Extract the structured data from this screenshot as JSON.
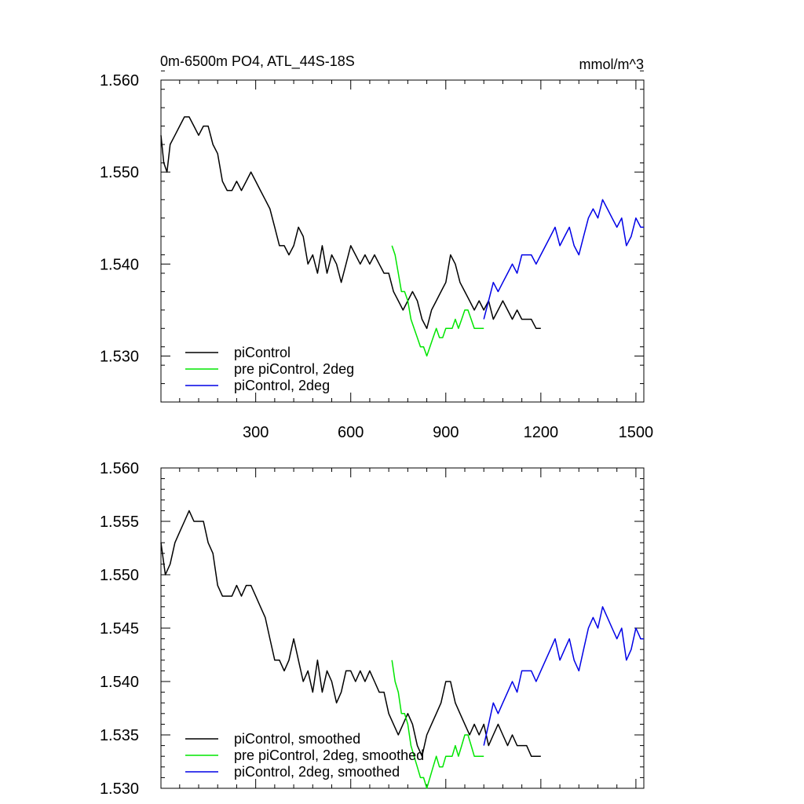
{
  "figure": {
    "title_left": "0m-6500m PO4, ATL_44S-18S",
    "title_right": "mmol/m^3"
  },
  "colors": {
    "piControl": "#000000",
    "pre_piControl_2deg": "#00e600",
    "piControl_2deg": "#0000e6"
  },
  "chart_data": [
    {
      "type": "line",
      "xlim": [
        1,
        1525
      ],
      "ylim": [
        1.525,
        1.56
      ],
      "xticks": [
        300,
        600,
        900,
        1200,
        1500
      ],
      "xtick_labels": [
        "300",
        "600",
        "900",
        "1200",
        "1500"
      ],
      "yticks": [
        1.53,
        1.54,
        1.55,
        1.56
      ],
      "ytick_labels": [
        "1.530",
        "1.540",
        "1.550",
        "1.560"
      ],
      "legend_position": "bottom-left",
      "series": [
        {
          "name": "piControl",
          "color": "#000000",
          "x": [
            1,
            10,
            20,
            30,
            45,
            60,
            75,
            90,
            105,
            120,
            135,
            150,
            165,
            180,
            195,
            210,
            225,
            240,
            255,
            270,
            285,
            300,
            315,
            330,
            345,
            360,
            375,
            390,
            405,
            420,
            435,
            450,
            465,
            480,
            495,
            510,
            525,
            540,
            555,
            570,
            585,
            600,
            615,
            630,
            645,
            660,
            675,
            690,
            705,
            720,
            735,
            750,
            765,
            780,
            795,
            810,
            825,
            840,
            855,
            870,
            885,
            900,
            915,
            930,
            945,
            960,
            975,
            990,
            1005,
            1020,
            1035,
            1050,
            1065,
            1080,
            1095,
            1110,
            1125,
            1140,
            1155,
            1170,
            1185,
            1200
          ],
          "y": [
            1.554,
            1.551,
            1.55,
            1.553,
            1.554,
            1.555,
            1.556,
            1.556,
            1.555,
            1.554,
            1.555,
            1.555,
            1.553,
            1.552,
            1.549,
            1.548,
            1.548,
            1.549,
            1.548,
            1.549,
            1.55,
            1.549,
            1.548,
            1.547,
            1.546,
            1.544,
            1.542,
            1.542,
            1.541,
            1.542,
            1.544,
            1.543,
            1.54,
            1.541,
            1.539,
            1.542,
            1.539,
            1.541,
            1.54,
            1.538,
            1.54,
            1.542,
            1.541,
            1.54,
            1.541,
            1.54,
            1.541,
            1.54,
            1.539,
            1.539,
            1.537,
            1.536,
            1.535,
            1.536,
            1.537,
            1.536,
            1.534,
            1.533,
            1.535,
            1.536,
            1.537,
            1.538,
            1.541,
            1.54,
            1.538,
            1.537,
            1.536,
            1.535,
            1.536,
            1.535,
            1.536,
            1.534,
            1.535,
            1.536,
            1.535,
            1.534,
            1.535,
            1.534,
            1.534,
            1.534,
            1.533,
            1.533
          ]
        },
        {
          "name": "pre piControl, 2deg",
          "color": "#00e600",
          "x": [
            730,
            740,
            750,
            760,
            770,
            780,
            790,
            800,
            810,
            820,
            830,
            840,
            850,
            860,
            870,
            880,
            890,
            900,
            910,
            920,
            930,
            940,
            950,
            960,
            970,
            980,
            990,
            1000,
            1010,
            1020
          ],
          "y": [
            1.542,
            1.541,
            1.539,
            1.537,
            1.537,
            1.536,
            1.534,
            1.533,
            1.532,
            1.531,
            1.531,
            1.53,
            1.531,
            1.532,
            1.533,
            1.532,
            1.532,
            1.533,
            1.533,
            1.533,
            1.534,
            1.533,
            1.534,
            1.535,
            1.535,
            1.534,
            1.533,
            1.533,
            1.533,
            1.533
          ]
        },
        {
          "name": "piControl, 2deg",
          "color": "#0000e6",
          "x": [
            1020,
            1035,
            1050,
            1065,
            1080,
            1095,
            1110,
            1125,
            1140,
            1155,
            1170,
            1185,
            1200,
            1215,
            1230,
            1245,
            1260,
            1275,
            1290,
            1305,
            1320,
            1335,
            1350,
            1365,
            1380,
            1395,
            1410,
            1425,
            1440,
            1455,
            1470,
            1485,
            1500,
            1515,
            1525
          ],
          "y": [
            1.534,
            1.536,
            1.538,
            1.537,
            1.538,
            1.539,
            1.54,
            1.539,
            1.541,
            1.541,
            1.541,
            1.54,
            1.541,
            1.542,
            1.543,
            1.544,
            1.542,
            1.543,
            1.544,
            1.542,
            1.541,
            1.543,
            1.545,
            1.546,
            1.545,
            1.547,
            1.546,
            1.545,
            1.544,
            1.545,
            1.542,
            1.543,
            1.545,
            1.544,
            1.544
          ]
        }
      ]
    },
    {
      "type": "line",
      "xlim": [
        1,
        1525
      ],
      "ylim": [
        1.53,
        1.56
      ],
      "xticks": [
        300,
        600,
        900,
        1200,
        1500
      ],
      "xtick_labels": [],
      "yticks": [
        1.53,
        1.535,
        1.54,
        1.545,
        1.55,
        1.555,
        1.56
      ],
      "ytick_labels": [
        "1.530",
        "1.535",
        "1.540",
        "1.545",
        "1.550",
        "1.555",
        "1.560"
      ],
      "legend_position": "bottom-left",
      "series": [
        {
          "name": "piControl, smoothed",
          "color": "#000000",
          "x": [
            1,
            15,
            30,
            45,
            60,
            75,
            90,
            105,
            120,
            135,
            150,
            165,
            180,
            195,
            210,
            225,
            240,
            255,
            270,
            285,
            300,
            315,
            330,
            345,
            360,
            375,
            390,
            405,
            420,
            435,
            450,
            465,
            480,
            495,
            510,
            525,
            540,
            555,
            570,
            585,
            600,
            615,
            630,
            645,
            660,
            675,
            690,
            705,
            720,
            735,
            750,
            765,
            780,
            795,
            810,
            825,
            840,
            855,
            870,
            885,
            900,
            915,
            930,
            945,
            960,
            975,
            990,
            1005,
            1020,
            1035,
            1050,
            1065,
            1080,
            1095,
            1110,
            1125,
            1140,
            1155,
            1170,
            1185,
            1200
          ],
          "y": [
            1.553,
            1.55,
            1.551,
            1.553,
            1.554,
            1.555,
            1.556,
            1.555,
            1.555,
            1.555,
            1.553,
            1.552,
            1.549,
            1.548,
            1.548,
            1.548,
            1.549,
            1.548,
            1.549,
            1.549,
            1.548,
            1.547,
            1.546,
            1.544,
            1.542,
            1.542,
            1.541,
            1.542,
            1.544,
            1.542,
            1.54,
            1.541,
            1.539,
            1.542,
            1.539,
            1.541,
            1.54,
            1.538,
            1.539,
            1.541,
            1.541,
            1.54,
            1.541,
            1.54,
            1.541,
            1.54,
            1.539,
            1.539,
            1.537,
            1.536,
            1.535,
            1.536,
            1.537,
            1.536,
            1.534,
            1.533,
            1.535,
            1.536,
            1.537,
            1.538,
            1.54,
            1.54,
            1.538,
            1.537,
            1.536,
            1.535,
            1.536,
            1.535,
            1.536,
            1.534,
            1.535,
            1.536,
            1.535,
            1.534,
            1.535,
            1.534,
            1.534,
            1.534,
            1.533,
            1.533,
            1.533
          ]
        },
        {
          "name": "pre piControl, 2deg, smoothed",
          "color": "#00e600",
          "x": [
            730,
            740,
            750,
            760,
            770,
            780,
            790,
            800,
            810,
            820,
            830,
            840,
            850,
            860,
            870,
            880,
            890,
            900,
            910,
            920,
            930,
            940,
            950,
            960,
            970,
            980,
            990,
            1000,
            1010,
            1020
          ],
          "y": [
            1.542,
            1.54,
            1.539,
            1.537,
            1.537,
            1.536,
            1.534,
            1.533,
            1.532,
            1.531,
            1.531,
            1.53,
            1.531,
            1.532,
            1.533,
            1.532,
            1.532,
            1.533,
            1.533,
            1.533,
            1.534,
            1.533,
            1.534,
            1.535,
            1.535,
            1.534,
            1.533,
            1.533,
            1.533,
            1.533
          ]
        },
        {
          "name": "piControl, 2deg, smoothed",
          "color": "#0000e6",
          "x": [
            1020,
            1035,
            1050,
            1065,
            1080,
            1095,
            1110,
            1125,
            1140,
            1155,
            1170,
            1185,
            1200,
            1215,
            1230,
            1245,
            1260,
            1275,
            1290,
            1305,
            1320,
            1335,
            1350,
            1365,
            1380,
            1395,
            1410,
            1425,
            1440,
            1455,
            1470,
            1485,
            1500,
            1515,
            1525
          ],
          "y": [
            1.534,
            1.536,
            1.538,
            1.537,
            1.538,
            1.539,
            1.54,
            1.539,
            1.541,
            1.541,
            1.541,
            1.54,
            1.541,
            1.542,
            1.543,
            1.544,
            1.542,
            1.543,
            1.544,
            1.542,
            1.541,
            1.543,
            1.545,
            1.546,
            1.545,
            1.547,
            1.546,
            1.545,
            1.544,
            1.545,
            1.542,
            1.543,
            1.545,
            1.544,
            1.544
          ]
        }
      ]
    }
  ]
}
